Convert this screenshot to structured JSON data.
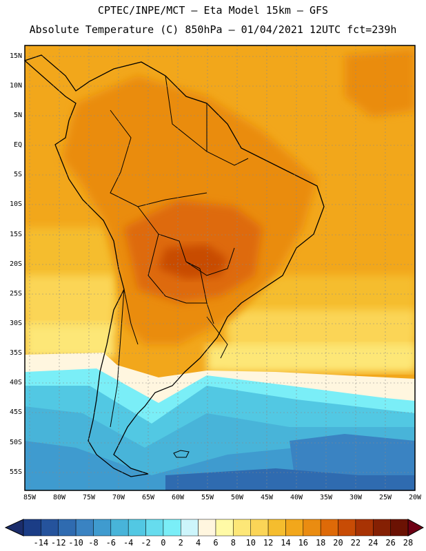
{
  "header": {
    "line1": "CPTEC/INPE/MCT —  Eta Model 15km — GFS",
    "line2": "Absolute Temperature (C) 850hPa — 01/04/2021 12UTC fct=239h"
  },
  "map": {
    "lat_labels": [
      "15N",
      "10N",
      "5N",
      "EQ",
      "5S",
      "10S",
      "15S",
      "20S",
      "25S",
      "30S",
      "35S",
      "40S",
      "45S",
      "50S",
      "55S"
    ],
    "lon_labels": [
      "85W",
      "80W",
      "75W",
      "70W",
      "65W",
      "60W",
      "55W",
      "50W",
      "45W",
      "40W",
      "35W",
      "30W",
      "25W",
      "20W"
    ],
    "lat_range": [
      16,
      -58
    ],
    "lon_range": [
      -85,
      -20
    ]
  },
  "colorbar": {
    "labels": [
      "-14",
      "-12",
      "-10",
      "-8",
      "-6",
      "-4",
      "-2",
      "0",
      "2",
      "4",
      "6",
      "8",
      "10",
      "12",
      "14",
      "16",
      "18",
      "20",
      "22",
      "24",
      "26",
      "28"
    ],
    "colors": [
      "#1b3d86",
      "#25539c",
      "#2f6bb0",
      "#3a83c2",
      "#3f9bcf",
      "#48b4d9",
      "#52c8e3",
      "#66dcee",
      "#7aeef7",
      "#cdf5fb",
      "#fff6df",
      "#fffaa6",
      "#fde777",
      "#fbd557",
      "#f5bd2e",
      "#f2a71b",
      "#ea8c11",
      "#de6a08",
      "#c84c05",
      "#a83304",
      "#852003",
      "#6b1203"
    ],
    "arrow_left_color": "#1b2d6b",
    "arrow_right_color": "#6e0014"
  }
}
